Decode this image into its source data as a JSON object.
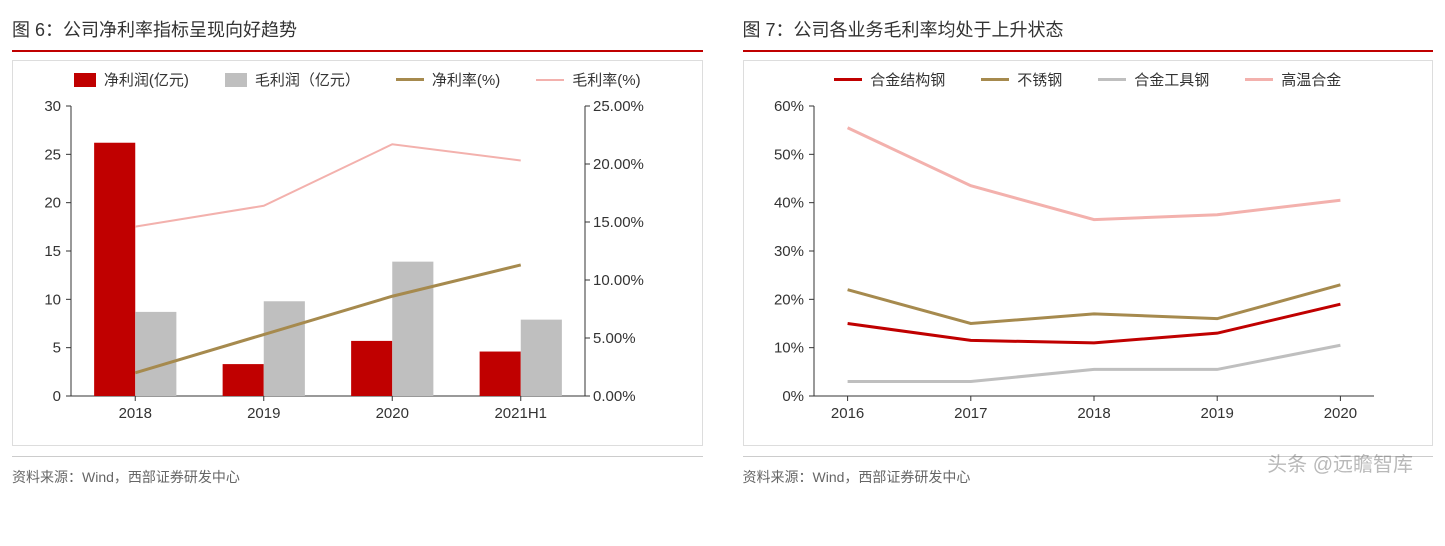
{
  "panels": {
    "left": {
      "title": "图 6：公司净利率指标呈现向好趋势",
      "source": "资料来源：Wind，西部证券研发中心"
    },
    "right": {
      "title": "图 7：公司各业务毛利率均处于上升状态",
      "source": "资料来源：Wind，西部证券研发中心"
    }
  },
  "watermark": "头条 @远瞻智库",
  "chart6": {
    "type": "bar+line-dual-axis",
    "categories": [
      "2018",
      "2019",
      "2020",
      "2021H1"
    ],
    "series": {
      "net_profit_bar": {
        "label": "净利润(亿元)",
        "color": "#c00000",
        "kind": "bar",
        "values": [
          26.2,
          3.3,
          5.7,
          4.6
        ]
      },
      "gross_profit_bar": {
        "label": "毛利润（亿元）",
        "color": "#bfbfbf",
        "kind": "bar",
        "values": [
          8.7,
          9.8,
          13.9,
          7.9
        ]
      },
      "net_margin_line": {
        "label": "净利率(%)",
        "color": "#a68a4e",
        "kind": "line",
        "values": [
          2.0,
          5.3,
          8.6,
          11.3
        ],
        "width": 3
      },
      "gross_margin_line": {
        "label": "毛利率(%)",
        "color": "#f3b1ad",
        "kind": "line",
        "values": [
          14.6,
          16.4,
          21.7,
          20.3
        ],
        "width": 2
      }
    },
    "y_left": {
      "min": 0,
      "max": 30,
      "step": 5
    },
    "y_right": {
      "min": 0,
      "max": 25,
      "step": 5,
      "suffix": ".00%"
    },
    "axis_fontsize": 15,
    "tick_color": "#333333",
    "axis_line_color": "#333333",
    "bar_width": 0.32,
    "legend_fontsize": 15
  },
  "chart7": {
    "type": "line",
    "categories": [
      "2016",
      "2017",
      "2018",
      "2019",
      "2020"
    ],
    "series": {
      "alloy_struct": {
        "label": "合金结构钢",
        "color": "#c00000",
        "values": [
          15,
          11.5,
          11,
          13,
          19
        ],
        "width": 3
      },
      "stainless": {
        "label": "不锈钢",
        "color": "#a68a4e",
        "values": [
          22,
          15,
          17,
          16,
          23
        ],
        "width": 3
      },
      "alloy_tool": {
        "label": "合金工具钢",
        "color": "#bfbfbf",
        "values": [
          3,
          3,
          5.5,
          5.5,
          10.5
        ],
        "width": 3
      },
      "high_temp": {
        "label": "高温合金",
        "color": "#f3b1ad",
        "values": [
          55.5,
          43.5,
          36.5,
          37.5,
          40.5
        ],
        "width": 3
      }
    },
    "y": {
      "min": 0,
      "max": 60,
      "step": 10,
      "suffix": "%"
    },
    "axis_fontsize": 15,
    "tick_color": "#333333",
    "axis_line_color": "#333333",
    "legend_fontsize": 15
  }
}
